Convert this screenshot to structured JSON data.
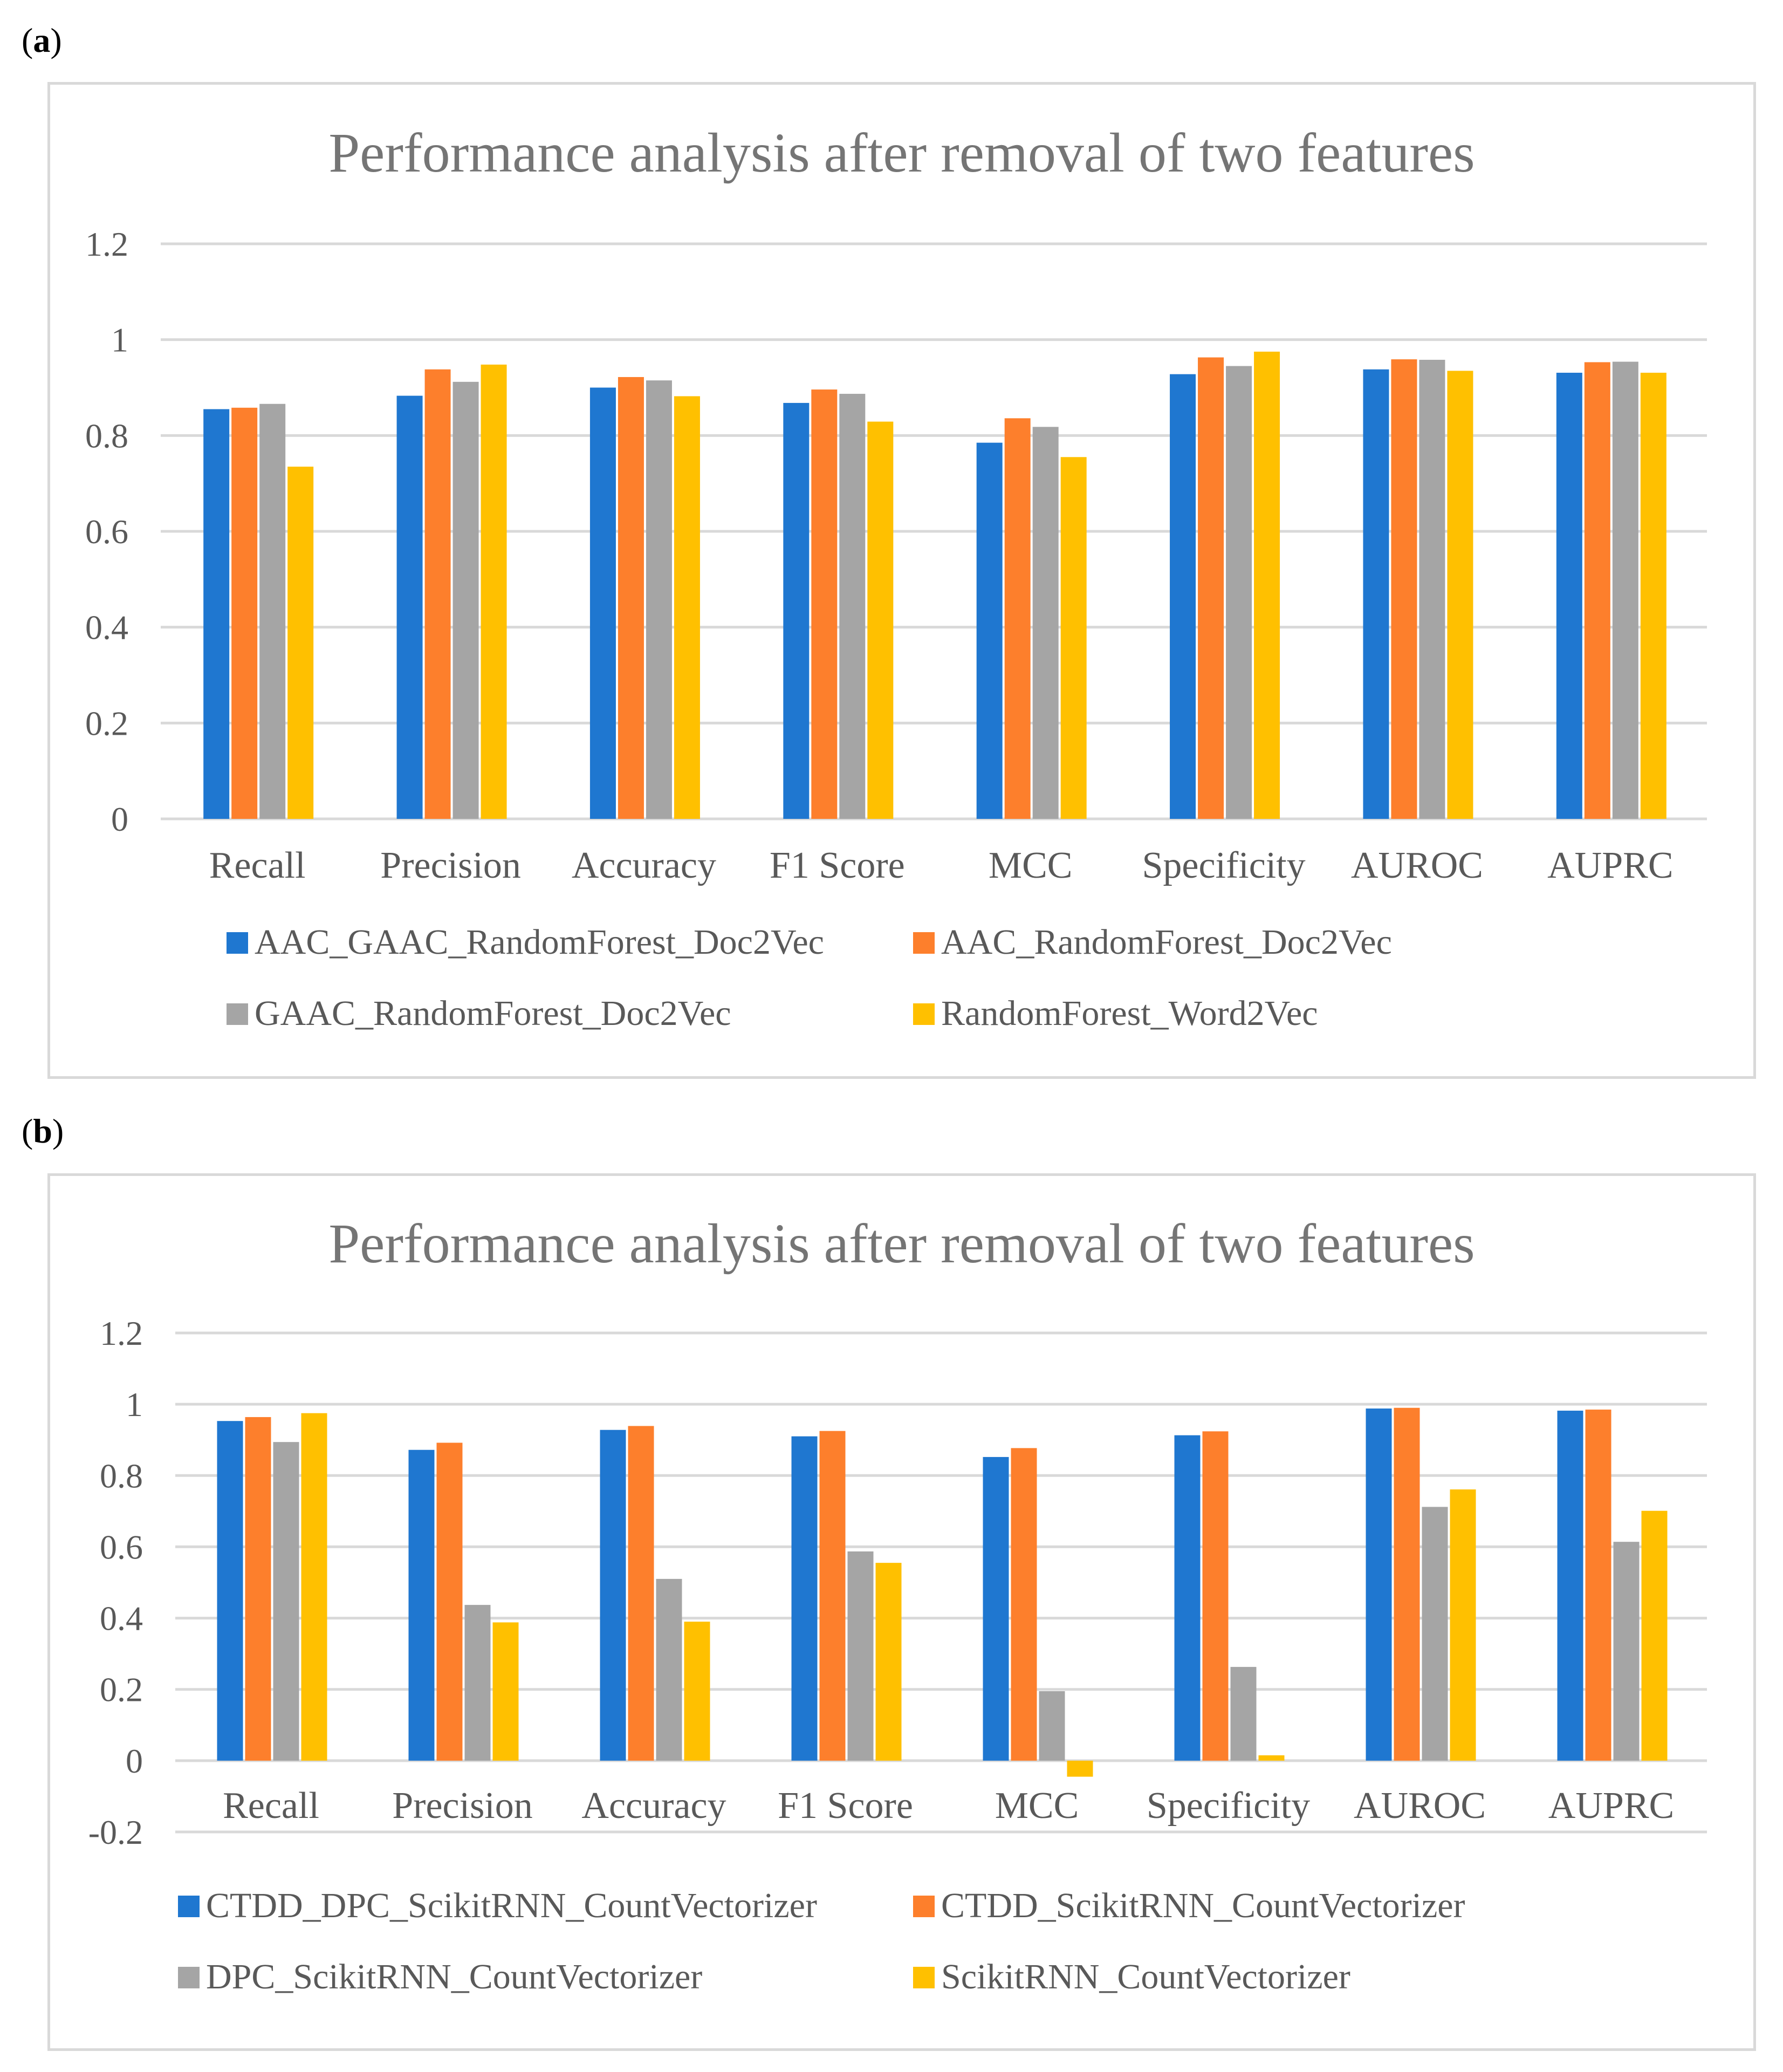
{
  "panels": [
    {
      "label_open": "(",
      "label_letter": "a",
      "label_close": ")"
    },
    {
      "label_open": "(",
      "label_letter": "b",
      "label_close": ")"
    }
  ],
  "chart_data": [
    {
      "type": "bar",
      "title": "Performance analysis after removal of two features",
      "xlabel": "",
      "ylabel": "",
      "ylim": [
        0,
        1.2
      ],
      "yticks": [
        "0",
        "0.2",
        "0.4",
        "0.6",
        "0.8",
        "1",
        "1.2"
      ],
      "ytick_values": [
        0,
        0.2,
        0.4,
        0.6,
        0.8,
        1.0,
        1.2
      ],
      "grid": true,
      "legend_position": "bottom",
      "categories": [
        "Recall",
        "Precision",
        "Accuracy",
        "F1 Score",
        "MCC",
        "Specificity",
        "AUROC",
        "AUPRC"
      ],
      "series": [
        {
          "name": "AAC_GAAC_RandomForest_Doc2Vec",
          "color": "#1f77d0",
          "values": [
            0.855,
            0.883,
            0.9,
            0.868,
            0.785,
            0.928,
            0.938,
            0.931
          ]
        },
        {
          "name": "AAC_RandomForest_Doc2Vec",
          "color": "#fd7f2c",
          "values": [
            0.858,
            0.938,
            0.922,
            0.896,
            0.836,
            0.963,
            0.959,
            0.953
          ]
        },
        {
          "name": "GAAC_RandomForest_Doc2Vec",
          "color": "#a5a5a5",
          "values": [
            0.866,
            0.912,
            0.915,
            0.887,
            0.818,
            0.945,
            0.958,
            0.954
          ]
        },
        {
          "name": "RandomForest_Word2Vec",
          "color": "#ffc000",
          "values": [
            0.735,
            0.948,
            0.882,
            0.829,
            0.755,
            0.975,
            0.935,
            0.931
          ]
        }
      ]
    },
    {
      "type": "bar",
      "title": "Performance analysis after removal of two features",
      "xlabel": "",
      "ylabel": "",
      "ylim": [
        -0.2,
        1.2
      ],
      "yticks": [
        "-0.2",
        "0",
        "0.2",
        "0.4",
        "0.6",
        "0.8",
        "1",
        "1.2"
      ],
      "ytick_values": [
        -0.2,
        0,
        0.2,
        0.4,
        0.6,
        0.8,
        1.0,
        1.2
      ],
      "grid": true,
      "legend_position": "bottom",
      "categories": [
        "Recall",
        "Precision",
        "Accuracy",
        "F1 Score",
        "MCC",
        "Specificity",
        "AUROC",
        "AUPRC"
      ],
      "series": [
        {
          "name": "CTDD_DPC_ScikitRNN_CountVectorizer",
          "color": "#1f77d0",
          "values": [
            0.953,
            0.872,
            0.928,
            0.91,
            0.852,
            0.913,
            0.988,
            0.982
          ]
        },
        {
          "name": "CTDD_ScikitRNN_CountVectorizer",
          "color": "#fd7f2c",
          "values": [
            0.964,
            0.892,
            0.939,
            0.925,
            0.877,
            0.924,
            0.99,
            0.985
          ]
        },
        {
          "name": "DPC_ScikitRNN_CountVectorizer",
          "color": "#a5a5a5",
          "values": [
            0.894,
            0.437,
            0.51,
            0.587,
            0.195,
            0.263,
            0.712,
            0.614
          ]
        },
        {
          "name": "ScikitRNN_CountVectorizer",
          "color": "#ffc000",
          "values": [
            0.975,
            0.388,
            0.39,
            0.555,
            -0.045,
            0.015,
            0.761,
            0.701
          ]
        }
      ]
    }
  ]
}
